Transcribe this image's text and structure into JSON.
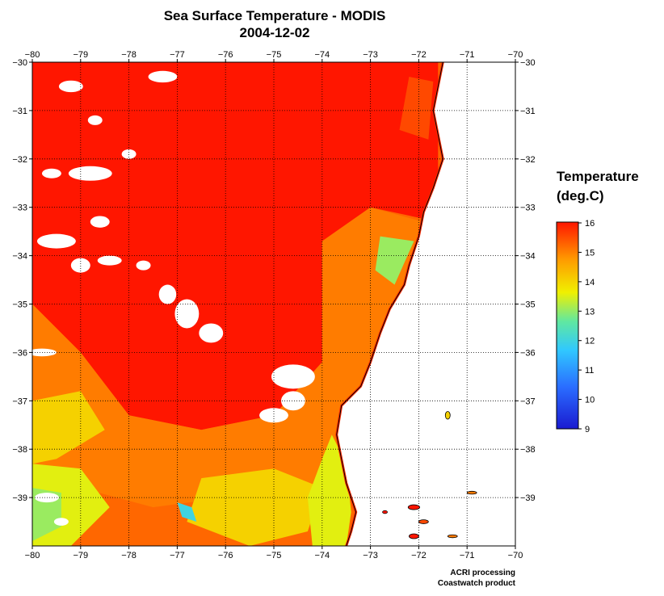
{
  "title": "Sea Surface Temperature - MODIS",
  "date": "2004-12-02",
  "legend": {
    "title_line1": "Temperature",
    "title_line2": "(deg.C)"
  },
  "credit": {
    "line1": "ACRI processing",
    "line2": "Coastwatch product"
  },
  "colors": {
    "hot": "#ff1a00",
    "warm": "#ff8c00",
    "mid": "#ffee00",
    "cool": "#40c0ff",
    "cold": "#2020d0",
    "land": "#ffffff",
    "cloud": "#ffffff"
  },
  "chart_data": {
    "type": "heatmap",
    "variable": "Sea Surface Temperature",
    "units": "deg.C",
    "xlim": [
      -80,
      -70
    ],
    "ylim": [
      -40,
      -30
    ],
    "x_ticks": [
      -80,
      -79,
      -78,
      -77,
      -76,
      -75,
      -74,
      -73,
      -72,
      -71,
      -70
    ],
    "y_ticks": [
      -30,
      -31,
      -32,
      -33,
      -34,
      -35,
      -36,
      -37,
      -38,
      -39
    ],
    "x_tick_labels": [
      "−80",
      "−79",
      "−78",
      "−77",
      "−76",
      "−75",
      "−74",
      "−73",
      "−72",
      "−71",
      "−70"
    ],
    "y_tick_labels": [
      "−30",
      "−31",
      "−32",
      "−33",
      "−34",
      "−35",
      "−36",
      "−37",
      "−38",
      "−39"
    ],
    "colorbar": {
      "min": 9,
      "max": 16,
      "ticks": [
        9,
        10,
        11,
        12,
        13,
        14,
        15,
        16
      ]
    },
    "grid": true,
    "coastline": [
      [
        -71.5,
        -30
      ],
      [
        -71.6,
        -30.5
      ],
      [
        -71.7,
        -31
      ],
      [
        -71.6,
        -31.5
      ],
      [
        -71.5,
        -32
      ],
      [
        -71.7,
        -32.6
      ],
      [
        -71.9,
        -33.1
      ],
      [
        -72.0,
        -33.6
      ],
      [
        -72.2,
        -34.2
      ],
      [
        -72.3,
        -34.6
      ],
      [
        -72.6,
        -35.1
      ],
      [
        -72.8,
        -35.6
      ],
      [
        -73.0,
        -36.2
      ],
      [
        -73.2,
        -36.7
      ],
      [
        -73.6,
        -37.1
      ],
      [
        -73.7,
        -37.7
      ],
      [
        -73.6,
        -38.2
      ],
      [
        -73.5,
        -38.7
      ],
      [
        -73.3,
        -39.3
      ],
      [
        -73.4,
        -39.7
      ],
      [
        -73.5,
        -40
      ]
    ],
    "regions": [
      {
        "temp": 16,
        "poly": [
          [
            -80,
            -30
          ],
          [
            -71.6,
            -30
          ],
          [
            -71.6,
            -33.3
          ],
          [
            -73,
            -33
          ],
          [
            -74,
            -33.7
          ],
          [
            -74,
            -36.2
          ],
          [
            -75,
            -37.3
          ],
          [
            -76.5,
            -37.6
          ],
          [
            -78,
            -37.3
          ],
          [
            -79,
            -36
          ],
          [
            -80,
            -35
          ]
        ]
      },
      {
        "temp": 15,
        "poly": [
          [
            -80,
            -35
          ],
          [
            -79,
            -36
          ],
          [
            -78,
            -37.3
          ],
          [
            -76.5,
            -37.6
          ],
          [
            -75,
            -37.3
          ],
          [
            -74,
            -36.2
          ],
          [
            -74,
            -33.7
          ],
          [
            -73,
            -33
          ],
          [
            -71.9,
            -33.3
          ],
          [
            -72.3,
            -34.6
          ],
          [
            -73,
            -36.2
          ],
          [
            -73.7,
            -37.7
          ],
          [
            -73.5,
            -39
          ],
          [
            -74.5,
            -39.5
          ],
          [
            -76,
            -39
          ],
          [
            -77.5,
            -39.2
          ],
          [
            -79,
            -38.8
          ],
          [
            -80,
            -38.5
          ]
        ]
      },
      {
        "temp": 14,
        "poly": [
          [
            -80,
            -37
          ],
          [
            -79,
            -36.8
          ],
          [
            -78.5,
            -37.6
          ],
          [
            -79.5,
            -38.2
          ],
          [
            -80,
            -38.3
          ]
        ]
      },
      {
        "temp": 14,
        "poly": [
          [
            -76.5,
            -38.6
          ],
          [
            -75,
            -38.4
          ],
          [
            -74,
            -38.8
          ],
          [
            -74.3,
            -39.7
          ],
          [
            -75.5,
            -40
          ],
          [
            -76.8,
            -39.5
          ]
        ]
      },
      {
        "temp": 13.5,
        "poly": [
          [
            -80,
            -38.3
          ],
          [
            -79,
            -38.4
          ],
          [
            -78.4,
            -39.2
          ],
          [
            -79.2,
            -40
          ],
          [
            -80,
            -40
          ]
        ]
      },
      {
        "temp": 13.5,
        "poly": [
          [
            -73.8,
            -37.7
          ],
          [
            -73.5,
            -38.3
          ],
          [
            -73.4,
            -39.3
          ],
          [
            -73.5,
            -40
          ],
          [
            -74.2,
            -40
          ],
          [
            -74.3,
            -39
          ],
          [
            -74,
            -38.2
          ]
        ]
      },
      {
        "temp": 13,
        "poly": [
          [
            -80,
            -38.8
          ],
          [
            -79.4,
            -38.9
          ],
          [
            -79.4,
            -39.6
          ],
          [
            -80,
            -39.9
          ]
        ]
      },
      {
        "temp": 13,
        "poly": [
          [
            -72.8,
            -33.6
          ],
          [
            -72.1,
            -33.7
          ],
          [
            -72.5,
            -34.6
          ],
          [
            -72.9,
            -34.3
          ]
        ]
      },
      {
        "temp": 12,
        "poly": [
          [
            -77,
            -39.1
          ],
          [
            -76.7,
            -39.2
          ],
          [
            -76.6,
            -39.5
          ],
          [
            -76.9,
            -39.4
          ]
        ]
      },
      {
        "temp": 15.5,
        "poly": [
          [
            -72.2,
            -30.3
          ],
          [
            -71.7,
            -30.4
          ],
          [
            -71.8,
            -31.6
          ],
          [
            -72.4,
            -31.4
          ]
        ]
      }
    ],
    "clouds": [
      {
        "cx": -79.2,
        "cy": -30.5,
        "rx": 0.25,
        "ry": 0.12
      },
      {
        "cx": -77.3,
        "cy": -30.3,
        "rx": 0.3,
        "ry": 0.12
      },
      {
        "cx": -78.7,
        "cy": -31.2,
        "rx": 0.15,
        "ry": 0.1
      },
      {
        "cx": -78.8,
        "cy": -32.3,
        "rx": 0.45,
        "ry": 0.15
      },
      {
        "cx": -79.6,
        "cy": -32.3,
        "rx": 0.2,
        "ry": 0.1
      },
      {
        "cx": -78.0,
        "cy": -31.9,
        "rx": 0.15,
        "ry": 0.1
      },
      {
        "cx": -79.5,
        "cy": -33.7,
        "rx": 0.4,
        "ry": 0.15
      },
      {
        "cx": -78.6,
        "cy": -33.3,
        "rx": 0.2,
        "ry": 0.12
      },
      {
        "cx": -78.4,
        "cy": -34.1,
        "rx": 0.25,
        "ry": 0.1
      },
      {
        "cx": -79.0,
        "cy": -34.2,
        "rx": 0.2,
        "ry": 0.15
      },
      {
        "cx": -77.7,
        "cy": -34.2,
        "rx": 0.15,
        "ry": 0.1
      },
      {
        "cx": -77.2,
        "cy": -34.8,
        "rx": 0.18,
        "ry": 0.2
      },
      {
        "cx": -76.8,
        "cy": -35.2,
        "rx": 0.25,
        "ry": 0.3
      },
      {
        "cx": -76.3,
        "cy": -35.6,
        "rx": 0.25,
        "ry": 0.2
      },
      {
        "cx": -74.6,
        "cy": -36.5,
        "rx": 0.45,
        "ry": 0.25
      },
      {
        "cx": -74.6,
        "cy": -37.0,
        "rx": 0.25,
        "ry": 0.2
      },
      {
        "cx": -75.0,
        "cy": -37.3,
        "rx": 0.3,
        "ry": 0.15
      },
      {
        "cx": -79.8,
        "cy": -36.0,
        "rx": 0.3,
        "ry": 0.08
      },
      {
        "cx": -79.7,
        "cy": -39.0,
        "rx": 0.25,
        "ry": 0.1
      },
      {
        "cx": -79.4,
        "cy": -39.5,
        "rx": 0.15,
        "ry": 0.08
      }
    ],
    "islands": [
      {
        "cx": -71.4,
        "cy": -37.3,
        "rx": 0.05,
        "ry": 0.08,
        "temp": 14
      },
      {
        "cx": -70.9,
        "cy": -38.9,
        "rx": 0.1,
        "ry": 0.03,
        "temp": 15
      },
      {
        "cx": -72.1,
        "cy": -39.2,
        "rx": 0.12,
        "ry": 0.05,
        "temp": 16
      },
      {
        "cx": -71.9,
        "cy": -39.5,
        "rx": 0.1,
        "ry": 0.04,
        "temp": 15.5
      },
      {
        "cx": -72.1,
        "cy": -39.8,
        "rx": 0.1,
        "ry": 0.05,
        "temp": 16
      },
      {
        "cx": -71.3,
        "cy": -39.8,
        "rx": 0.1,
        "ry": 0.03,
        "temp": 15
      },
      {
        "cx": -72.7,
        "cy": -39.3,
        "rx": 0.05,
        "ry": 0.03,
        "temp": 16
      }
    ]
  }
}
